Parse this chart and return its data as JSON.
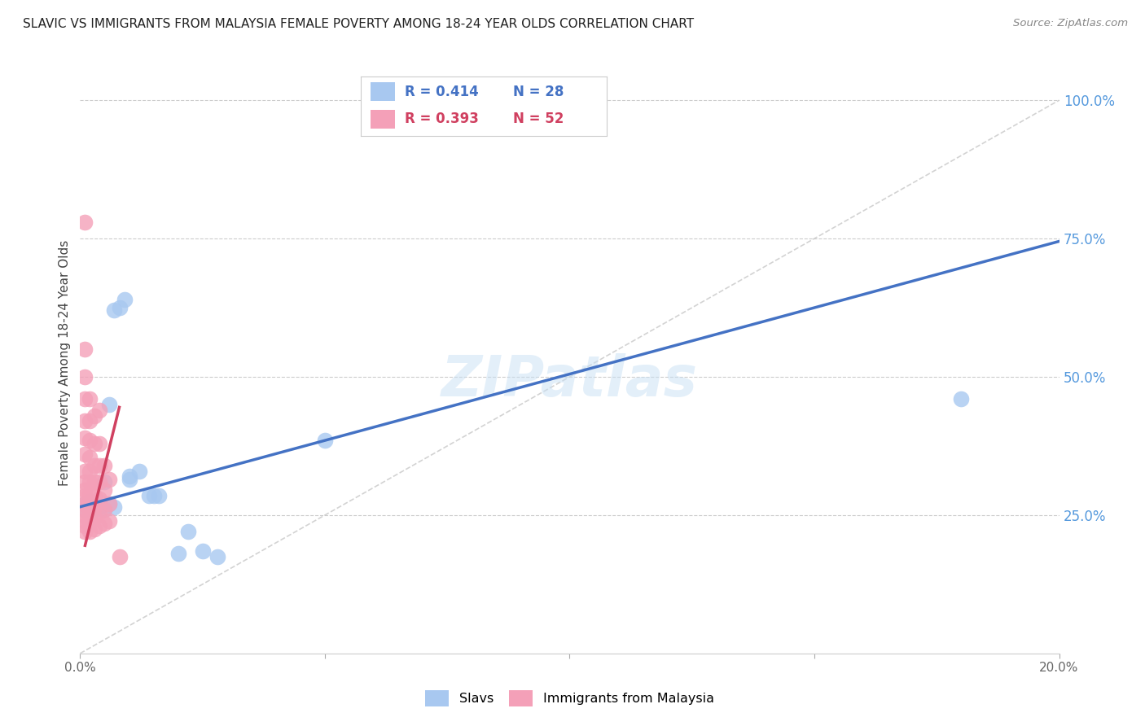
{
  "title": "SLAVIC VS IMMIGRANTS FROM MALAYSIA FEMALE POVERTY AMONG 18-24 YEAR OLDS CORRELATION CHART",
  "source": "Source: ZipAtlas.com",
  "ylabel": "Female Poverty Among 18-24 Year Olds",
  "watermark": "ZIPatlas",
  "xlim": [
    0.0,
    0.2
  ],
  "ylim": [
    0.0,
    1.05
  ],
  "ytick_positions": [
    0.25,
    0.5,
    0.75,
    1.0
  ],
  "ytick_labels": [
    "25.0%",
    "50.0%",
    "75.0%",
    "100.0%"
  ],
  "legend_r1": "0.414",
  "legend_n1": "28",
  "legend_r2": "0.393",
  "legend_n2": "52",
  "color_slavs": "#a8c8f0",
  "color_malaysia": "#f4a0b8",
  "color_line_slavs": "#4472c4",
  "color_line_malaysia": "#d04060",
  "color_diagonal": "#c8c8c8",
  "background": "#ffffff",
  "title_color": "#222222",
  "axis_label_color": "#444444",
  "right_tick_color": "#5599dd",
  "slavs_points": [
    [
      0.001,
      0.27
    ],
    [
      0.001,
      0.26
    ],
    [
      0.002,
      0.275
    ],
    [
      0.002,
      0.265
    ],
    [
      0.003,
      0.27
    ],
    [
      0.003,
      0.26
    ],
    [
      0.004,
      0.275
    ],
    [
      0.004,
      0.265
    ],
    [
      0.005,
      0.26
    ],
    [
      0.005,
      0.31
    ],
    [
      0.006,
      0.27
    ],
    [
      0.006,
      0.45
    ],
    [
      0.007,
      0.265
    ],
    [
      0.007,
      0.62
    ],
    [
      0.008,
      0.625
    ],
    [
      0.009,
      0.64
    ],
    [
      0.01,
      0.315
    ],
    [
      0.01,
      0.32
    ],
    [
      0.012,
      0.33
    ],
    [
      0.014,
      0.285
    ],
    [
      0.015,
      0.285
    ],
    [
      0.016,
      0.285
    ],
    [
      0.02,
      0.18
    ],
    [
      0.022,
      0.22
    ],
    [
      0.025,
      0.185
    ],
    [
      0.028,
      0.175
    ],
    [
      0.05,
      0.385
    ],
    [
      0.18,
      0.46
    ]
  ],
  "malaysia_points": [
    [
      0.001,
      0.22
    ],
    [
      0.001,
      0.23
    ],
    [
      0.001,
      0.24
    ],
    [
      0.001,
      0.25
    ],
    [
      0.001,
      0.26
    ],
    [
      0.001,
      0.27
    ],
    [
      0.001,
      0.285
    ],
    [
      0.001,
      0.295
    ],
    [
      0.001,
      0.31
    ],
    [
      0.001,
      0.33
    ],
    [
      0.001,
      0.36
    ],
    [
      0.001,
      0.39
    ],
    [
      0.001,
      0.42
    ],
    [
      0.001,
      0.46
    ],
    [
      0.001,
      0.5
    ],
    [
      0.001,
      0.55
    ],
    [
      0.001,
      0.78
    ],
    [
      0.002,
      0.22
    ],
    [
      0.002,
      0.235
    ],
    [
      0.002,
      0.245
    ],
    [
      0.002,
      0.26
    ],
    [
      0.002,
      0.275
    ],
    [
      0.002,
      0.29
    ],
    [
      0.002,
      0.31
    ],
    [
      0.002,
      0.33
    ],
    [
      0.002,
      0.355
    ],
    [
      0.002,
      0.385
    ],
    [
      0.002,
      0.42
    ],
    [
      0.002,
      0.46
    ],
    [
      0.003,
      0.225
    ],
    [
      0.003,
      0.245
    ],
    [
      0.003,
      0.265
    ],
    [
      0.003,
      0.285
    ],
    [
      0.003,
      0.31
    ],
    [
      0.003,
      0.34
    ],
    [
      0.003,
      0.38
    ],
    [
      0.003,
      0.43
    ],
    [
      0.004,
      0.23
    ],
    [
      0.004,
      0.255
    ],
    [
      0.004,
      0.28
    ],
    [
      0.004,
      0.31
    ],
    [
      0.004,
      0.34
    ],
    [
      0.004,
      0.38
    ],
    [
      0.004,
      0.44
    ],
    [
      0.005,
      0.235
    ],
    [
      0.005,
      0.26
    ],
    [
      0.005,
      0.295
    ],
    [
      0.005,
      0.34
    ],
    [
      0.006,
      0.24
    ],
    [
      0.006,
      0.27
    ],
    [
      0.006,
      0.315
    ],
    [
      0.008,
      0.175
    ]
  ]
}
